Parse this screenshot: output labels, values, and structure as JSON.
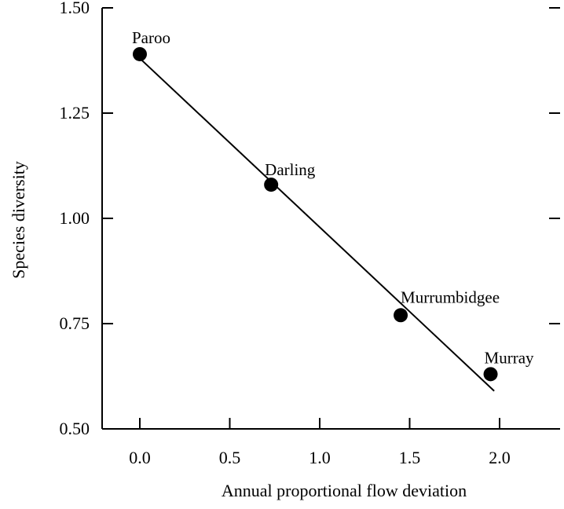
{
  "chart_data": {
    "type": "scatter",
    "xlabel": "Annual proportional flow deviation",
    "ylabel": "Species diversity",
    "xlim": [
      -0.1,
      2.35
    ],
    "ylim": [
      0.5,
      1.5
    ],
    "x_ticks": [
      {
        "value": 0.0,
        "label": "0.0"
      },
      {
        "value": 0.5,
        "label": "0.5"
      },
      {
        "value": 1.0,
        "label": "1.0"
      },
      {
        "value": 1.5,
        "label": "1.5"
      },
      {
        "value": 2.0,
        "label": "2.0"
      }
    ],
    "y_ticks": [
      {
        "value": 0.5,
        "label": "0.50"
      },
      {
        "value": 0.75,
        "label": "0.75"
      },
      {
        "value": 1.0,
        "label": "1.00"
      },
      {
        "value": 1.25,
        "label": "1.25"
      },
      {
        "value": 1.5,
        "label": "1.50"
      }
    ],
    "points": [
      {
        "label": "Paroo",
        "x": 0.0,
        "y": 1.39
      },
      {
        "label": "Darling",
        "x": 0.73,
        "y": 1.08
      },
      {
        "label": "Murrumbidgee",
        "x": 1.45,
        "y": 0.77
      },
      {
        "label": "Murray",
        "x": 1.95,
        "y": 0.63
      }
    ],
    "fit_line": {
      "x": [
        0.0,
        1.97
      ],
      "y": [
        1.38,
        0.59
      ]
    },
    "grid": false,
    "legend": "none",
    "marker_color": "#000000",
    "line_color": "#000000"
  }
}
